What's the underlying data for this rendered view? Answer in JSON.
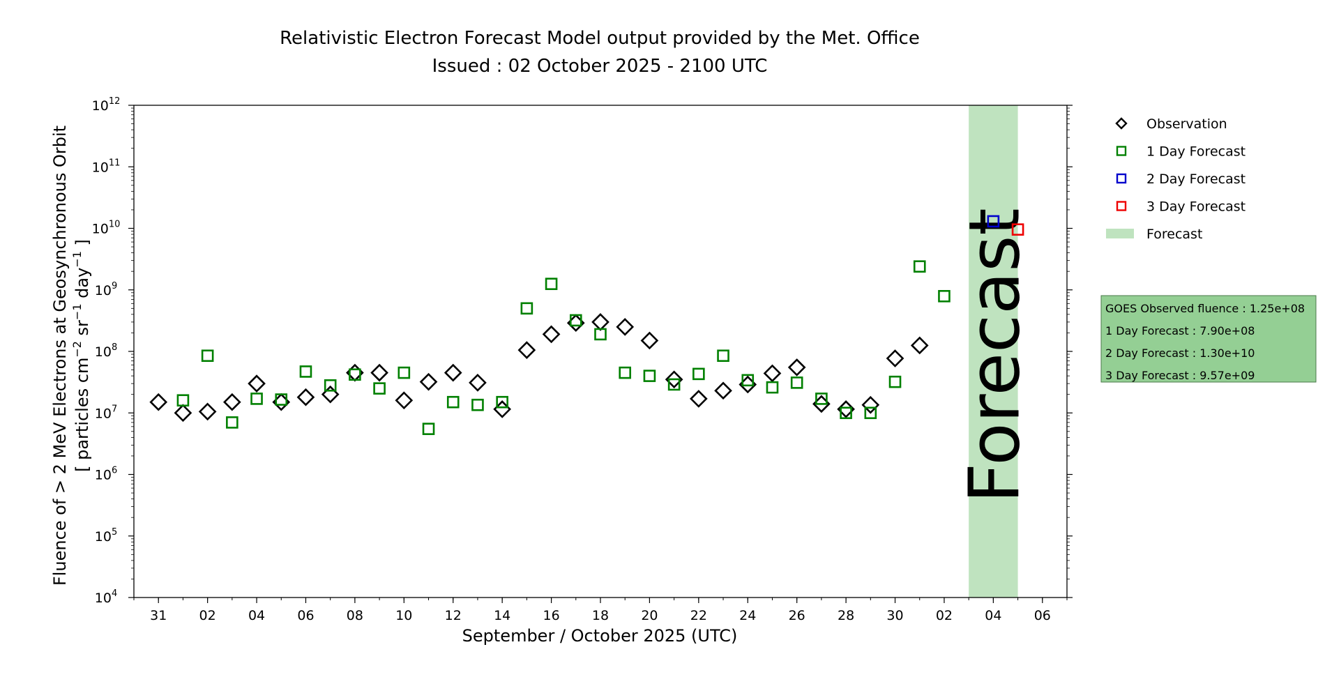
{
  "chart_data": {
    "type": "scatter",
    "title_line1": "Relativistic Electron Forecast Model output provided by the Met. Office",
    "title_line2": "Issued : 02 October 2025 - 2100 UTC",
    "xlabel": "September / October 2025 (UTC)",
    "ylabel_line1": "Fluence of > 2 MeV Electrons at Geosynchronous Orbit",
    "ylabel_line2": {
      "prefix": "[ particles cm",
      "exp1": "−2",
      "mid1": " sr",
      "exp2": "−1",
      "mid2": " day",
      "exp3": "−1",
      "suffix": " ]"
    },
    "yscale": "log",
    "ylim_exponents": [
      4,
      12
    ],
    "y_ticks": [
      {
        "base": "10",
        "exp": "4"
      },
      {
        "base": "10",
        "exp": "5"
      },
      {
        "base": "10",
        "exp": "6"
      },
      {
        "base": "10",
        "exp": "7"
      },
      {
        "base": "10",
        "exp": "8"
      },
      {
        "base": "10",
        "exp": "9"
      },
      {
        "base": "10",
        "exp": "10"
      },
      {
        "base": "10",
        "exp": "11"
      },
      {
        "base": "10",
        "exp": "12"
      }
    ],
    "xlim": [
      "2025-08-30",
      "2025-10-07"
    ],
    "x_ticks": [
      {
        "date": "2025-08-31",
        "label": "31"
      },
      {
        "date": "2025-09-02",
        "label": "02"
      },
      {
        "date": "2025-09-04",
        "label": "04"
      },
      {
        "date": "2025-09-06",
        "label": "06"
      },
      {
        "date": "2025-09-08",
        "label": "08"
      },
      {
        "date": "2025-09-10",
        "label": "10"
      },
      {
        "date": "2025-09-12",
        "label": "12"
      },
      {
        "date": "2025-09-14",
        "label": "14"
      },
      {
        "date": "2025-09-16",
        "label": "16"
      },
      {
        "date": "2025-09-18",
        "label": "18"
      },
      {
        "date": "2025-09-20",
        "label": "20"
      },
      {
        "date": "2025-09-22",
        "label": "22"
      },
      {
        "date": "2025-09-24",
        "label": "24"
      },
      {
        "date": "2025-09-26",
        "label": "26"
      },
      {
        "date": "2025-09-28",
        "label": "28"
      },
      {
        "date": "2025-09-30",
        "label": "30"
      },
      {
        "date": "2025-10-02",
        "label": "02"
      },
      {
        "date": "2025-10-04",
        "label": "04"
      },
      {
        "date": "2025-10-06",
        "label": "06"
      }
    ],
    "forecast_region": {
      "start": "2025-10-03",
      "end": "2025-10-05",
      "label": "Forecast",
      "color": "#bfe3bf",
      "text_color": "#8a9e8a"
    },
    "series": [
      {
        "name": "Observation",
        "marker": "diamond",
        "color": "#000000",
        "points": [
          [
            "2025-08-31",
            15000000.0
          ],
          [
            "2025-09-01",
            10000000.0
          ],
          [
            "2025-09-02",
            10500000.0
          ],
          [
            "2025-09-03",
            15000000.0
          ],
          [
            "2025-09-04",
            30000000.0
          ],
          [
            "2025-09-05",
            15000000.0
          ],
          [
            "2025-09-06",
            18000000.0
          ],
          [
            "2025-09-07",
            20000000.0
          ],
          [
            "2025-09-08",
            45000000.0
          ],
          [
            "2025-09-09",
            45000000.0
          ],
          [
            "2025-09-10",
            16000000.0
          ],
          [
            "2025-09-11",
            32000000.0
          ],
          [
            "2025-09-12",
            45000000.0
          ],
          [
            "2025-09-13",
            31000000.0
          ],
          [
            "2025-09-14",
            11500000.0
          ],
          [
            "2025-09-15",
            105000000.0
          ],
          [
            "2025-09-16",
            190000000.0
          ],
          [
            "2025-09-17",
            290000000.0
          ],
          [
            "2025-09-18",
            300000000.0
          ],
          [
            "2025-09-19",
            250000000.0
          ],
          [
            "2025-09-20",
            150000000.0
          ],
          [
            "2025-09-21",
            35000000.0
          ],
          [
            "2025-09-22",
            17000000.0
          ],
          [
            "2025-09-23",
            23000000.0
          ],
          [
            "2025-09-24",
            29000000.0
          ],
          [
            "2025-09-25",
            44000000.0
          ],
          [
            "2025-09-26",
            55000000.0
          ],
          [
            "2025-09-27",
            14000000.0
          ],
          [
            "2025-09-28",
            11500000.0
          ],
          [
            "2025-09-29",
            13500000.0
          ],
          [
            "2025-09-30",
            77000000.0
          ],
          [
            "2025-10-01",
            125000000.0
          ]
        ]
      },
      {
        "name": "1 Day Forecast",
        "marker": "square",
        "color": "#008000",
        "points": [
          [
            "2025-09-01",
            16000000.0
          ],
          [
            "2025-09-02",
            85000000.0
          ],
          [
            "2025-09-03",
            7000000.0
          ],
          [
            "2025-09-04",
            17000000.0
          ],
          [
            "2025-09-05",
            16500000.0
          ],
          [
            "2025-09-06",
            47000000.0
          ],
          [
            "2025-09-07",
            28000000.0
          ],
          [
            "2025-09-08",
            42000000.0
          ],
          [
            "2025-09-09",
            25000000.0
          ],
          [
            "2025-09-10",
            45000000.0
          ],
          [
            "2025-09-11",
            5500000.0
          ],
          [
            "2025-09-12",
            15000000.0
          ],
          [
            "2025-09-13",
            13500000.0
          ],
          [
            "2025-09-14",
            15000000.0
          ],
          [
            "2025-09-15",
            500000000.0
          ],
          [
            "2025-09-16",
            1250000000.0
          ],
          [
            "2025-09-17",
            320000000.0
          ],
          [
            "2025-09-18",
            190000000.0
          ],
          [
            "2025-09-19",
            45000000.0
          ],
          [
            "2025-09-20",
            40000000.0
          ],
          [
            "2025-09-21",
            29000000.0
          ],
          [
            "2025-09-22",
            43000000.0
          ],
          [
            "2025-09-23",
            85000000.0
          ],
          [
            "2025-09-24",
            34000000.0
          ],
          [
            "2025-09-25",
            26000000.0
          ],
          [
            "2025-09-26",
            31000000.0
          ],
          [
            "2025-09-27",
            17000000.0
          ],
          [
            "2025-09-28",
            10000000.0
          ],
          [
            "2025-09-29",
            10000000.0
          ],
          [
            "2025-09-30",
            32000000.0
          ],
          [
            "2025-10-01",
            2400000000.0
          ],
          [
            "2025-10-02",
            790000000.0
          ]
        ]
      },
      {
        "name": "2 Day Forecast",
        "marker": "square",
        "color": "#0000cc",
        "points": [
          [
            "2025-10-04",
            13000000000.0
          ]
        ]
      },
      {
        "name": "3 Day Forecast",
        "marker": "square",
        "color": "#ee0000",
        "points": [
          [
            "2025-10-05",
            9570000000.0
          ]
        ]
      }
    ],
    "legend": {
      "placement": "right",
      "items": [
        {
          "label": "Observation",
          "marker": "diamond",
          "color": "#000000"
        },
        {
          "label": "1 Day Forecast",
          "marker": "square",
          "color": "#008000"
        },
        {
          "label": "2 Day Forecast",
          "marker": "square",
          "color": "#0000cc"
        },
        {
          "label": "3 Day Forecast",
          "marker": "square",
          "color": "#ee0000"
        },
        {
          "label": "Forecast",
          "marker": "patch",
          "color": "#bfe3bf"
        }
      ]
    },
    "info_box": {
      "background": "#94cf94",
      "lines": [
        "GOES Observed fluence : 1.25e+08",
        "1 Day Forecast : 7.90e+08",
        "2 Day Forecast : 1.30e+10",
        "3 Day Forecast : 9.57e+09"
      ]
    }
  }
}
